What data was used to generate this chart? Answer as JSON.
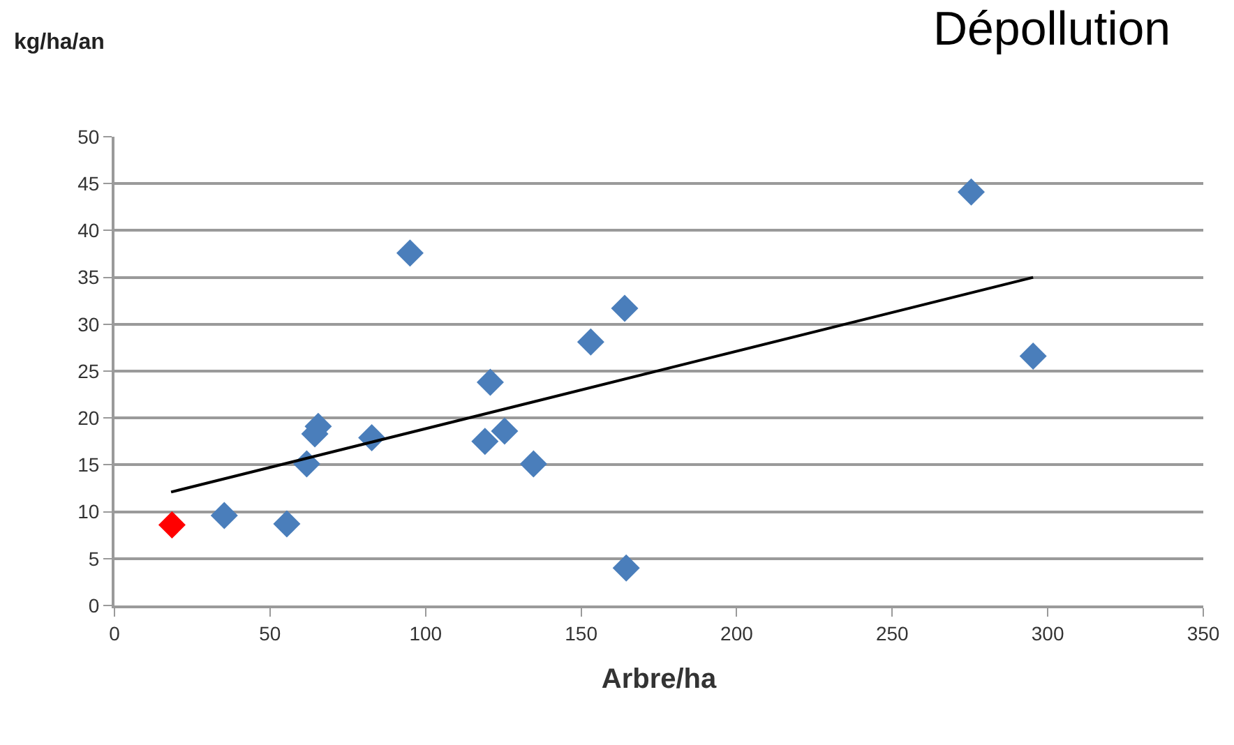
{
  "chart_data": {
    "type": "scatter",
    "title": "Dépollution",
    "xlabel": "Arbre/ha",
    "ylabel": "kg/ha/an",
    "xlim": [
      0,
      350
    ],
    "xticks": [
      0,
      50,
      100,
      150,
      200,
      250,
      300,
      350
    ],
    "ylim": [
      0,
      50
    ],
    "yticks": [
      0,
      5,
      10,
      15,
      20,
      25,
      30,
      35,
      40,
      45,
      50
    ],
    "grid": "y",
    "series": [
      {
        "marker": "diamond",
        "color": "#4a7ebb",
        "x": [
          35.3,
          55.4,
          61.8,
          64.4,
          65.5,
          82.7,
          95.0,
          120.8,
          119.1,
          125.4,
          134.7,
          153.1,
          164.0,
          164.5,
          275.4,
          295.3
        ],
        "values": [
          9.6,
          8.7,
          15.1,
          18.3,
          19.1,
          17.9,
          37.6,
          23.8,
          17.5,
          18.6,
          15.1,
          28.1,
          31.7,
          4.0,
          44.1,
          26.6
        ]
      },
      {
        "marker": "diamond",
        "color": "#ff0000",
        "x": [
          18.5
        ],
        "values": [
          8.6
        ]
      },
      {
        "type": "line",
        "marker": "none",
        "color": "#000000",
        "x": [
          18.2,
          295.3
        ],
        "values": [
          12.1,
          35.0
        ]
      }
    ]
  }
}
